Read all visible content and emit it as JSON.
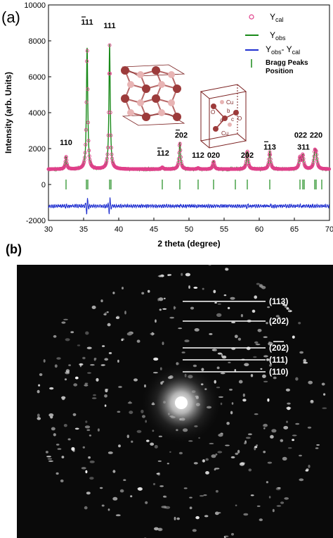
{
  "panel_a_label": "(a)",
  "panel_b_label": "(b)",
  "chart_data": {
    "type": "line",
    "xlabel": "2 theta (degree)",
    "ylabel": "Intensity (arb. Units)",
    "xlim": [
      30,
      70
    ],
    "ylim": [
      -2000,
      10000
    ],
    "xticks": [
      30,
      35,
      40,
      45,
      50,
      55,
      60,
      65,
      70
    ],
    "yticks": [
      -2000,
      0,
      2000,
      4000,
      6000,
      8000,
      10000
    ],
    "baseline": 850,
    "diff_baseline": -1200,
    "bragg_y": 0,
    "peaks": [
      {
        "x": 32.5,
        "height": 700,
        "width": 0.12
      },
      {
        "x": 35.5,
        "height": 6800,
        "width": 0.11
      },
      {
        "x": 38.7,
        "height": 6900,
        "width": 0.11
      },
      {
        "x": 46.2,
        "height": 100,
        "width": 0.15
      },
      {
        "x": 48.7,
        "height": 1450,
        "width": 0.13
      },
      {
        "x": 51.3,
        "height": 60,
        "width": 0.15
      },
      {
        "x": 53.5,
        "height": 420,
        "width": 0.14
      },
      {
        "x": 58.3,
        "height": 1000,
        "width": 0.14
      },
      {
        "x": 61.5,
        "height": 950,
        "width": 0.14
      },
      {
        "x": 65.8,
        "height": 620,
        "width": 0.15
      },
      {
        "x": 66.2,
        "height": 750,
        "width": 0.15
      },
      {
        "x": 67.9,
        "height": 820,
        "width": 0.15
      },
      {
        "x": 68.1,
        "height": 700,
        "width": 0.15
      }
    ],
    "bragg_positions": [
      32.5,
      35.4,
      35.6,
      38.7,
      38.9,
      46.2,
      48.7,
      51.3,
      53.5,
      56.6,
      58.3,
      61.5,
      65.8,
      66.2,
      66.4,
      67.9,
      68.1,
      68.9
    ],
    "peak_labels": [
      {
        "text": "110",
        "x": 32.5,
        "y": 2200,
        "overline": false
      },
      {
        "text": "111",
        "x": 35.5,
        "y": 8900,
        "overline": true
      },
      {
        "text": "111",
        "x": 38.7,
        "y": 8700,
        "overline": false
      },
      {
        "text": "112",
        "x": 46.3,
        "y": 1600,
        "overline": true
      },
      {
        "text": "202",
        "x": 48.9,
        "y": 2600,
        "overline": true
      },
      {
        "text": "112",
        "x": 51.3,
        "y": 1500,
        "overline": false
      },
      {
        "text": "020",
        "x": 53.5,
        "y": 1500,
        "overline": false
      },
      {
        "text": "202",
        "x": 58.3,
        "y": 1500,
        "overline": false
      },
      {
        "text": "113",
        "x": 61.5,
        "y": 1950,
        "overline": true
      },
      {
        "text": "022",
        "x": 65.9,
        "y": 2600,
        "overline": false
      },
      {
        "text": "311",
        "x": 66.3,
        "y": 1950,
        "overline": false
      },
      {
        "text": "220",
        "x": 68.1,
        "y": 2600,
        "overline": false
      }
    ],
    "series": [
      {
        "name": "Y_cal",
        "color": "#e0408a",
        "style": "open-circle"
      },
      {
        "name": "Y_obs",
        "color": "#1a8a1a",
        "style": "line"
      },
      {
        "name": "Y_obs - Y_cal",
        "color": "#1f2fd0",
        "style": "line"
      },
      {
        "name": "Bragg Peaks Position",
        "color": "#1a8a1a",
        "style": "tick"
      }
    ]
  },
  "legend": {
    "ycal_main": "Y",
    "ycal_sub": "cal",
    "yobs_main": "Y",
    "yobs_sub": "obs",
    "diff_main1": "Y",
    "diff_sub1": "obs",
    "diff_dash": "- Y",
    "diff_sub2": "cal",
    "bragg_line1": "Bragg Peaks",
    "bragg_line2": "Position"
  },
  "unit_cell_labels": {
    "cu_top": "Cu",
    "cu_bottom": "Cu",
    "o_left": "O",
    "o_right": "O",
    "a": "a",
    "b": "b",
    "c": "c"
  },
  "colors": {
    "ycal": "#e0408a",
    "yobs": "#1a8a1a",
    "diff": "#1f2fd0",
    "bragg": "#1a8a1a",
    "atom_dark": "#9c3b3b",
    "atom_light": "#e8b4b4",
    "cell_line": "#7a1f1f"
  },
  "saed": {
    "rings": [
      {
        "label": "(113)",
        "radius": 168,
        "line_y": 428
      },
      {
        "label": "(202)",
        "radius": 138,
        "line_y": 456
      },
      {
        "label": "(202)",
        "radius": 90,
        "line_y": 494,
        "overline": true
      },
      {
        "label": "(111)",
        "radius": 73,
        "line_y": 511
      },
      {
        "label": "(110)",
        "radius": 57,
        "line_y": 528
      }
    ]
  }
}
